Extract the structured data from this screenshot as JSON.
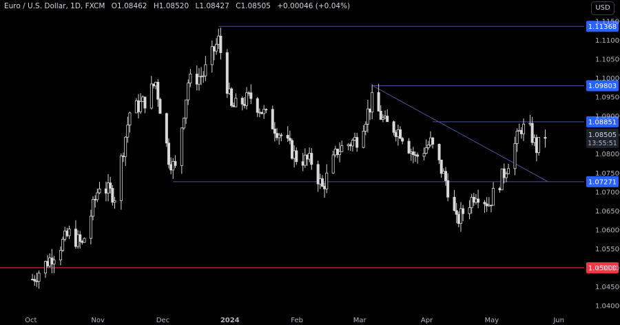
{
  "header": {
    "symbol": "Euro / U.S. Dollar, 1D, FXCM",
    "open": "O1.08462",
    "high": "H1.08520",
    "low": "L1.08427",
    "close": "C1.08505",
    "change": "+0.00046 (+0.04%)"
  },
  "currency_button": "USD",
  "colors": {
    "background": "#000000",
    "candle": "#d9d9d9",
    "levels": "#4a5597",
    "support": "#f23645",
    "label_blue": "#2962ff"
  },
  "chart_data": {
    "type": "candlestick",
    "title": "",
    "x_axis": {
      "tick_labels": [
        "Oct",
        "Nov",
        "Dec",
        "2024",
        "Feb",
        "Mar",
        "Apr",
        "May",
        "Jun"
      ]
    },
    "y_axis": {
      "range": [
        1.038,
        1.117
      ],
      "tick_labels": [
        "1.04000",
        "1.04500",
        "1.05000",
        "1.05500",
        "1.06000",
        "1.06500",
        "1.07000",
        "1.07500",
        "1.08000",
        "1.08500",
        "1.09000",
        "1.09500",
        "1.10000",
        "1.10500",
        "1.11000",
        "1.11500"
      ]
    },
    "horizontal_levels": [
      {
        "value": 1.11368,
        "label": "1.11368",
        "style": "resistance"
      },
      {
        "value": 1.09803,
        "label": "1.09803",
        "style": "resistance"
      },
      {
        "value": 1.08851,
        "label": "1.08851",
        "style": "resistance"
      },
      {
        "value": 1.07271,
        "label": "1.07271",
        "style": "support"
      },
      {
        "value": 1.05,
        "label": "1.05000",
        "style": "key-support"
      }
    ],
    "trendline": {
      "from": {
        "date": "2024-03-08",
        "value": 1.0981
      },
      "to": {
        "date": "2024-05-28",
        "value": 1.0728
      }
    },
    "last_price": {
      "value": 1.08505,
      "label": "1.08505",
      "countdown": "13:55:51"
    },
    "close_path": [
      [
        "2023-10-03",
        1.047
      ],
      [
        "2023-10-12",
        1.053
      ],
      [
        "2023-10-20",
        1.059
      ],
      [
        "2023-10-26",
        1.056
      ],
      [
        "2023-11-03",
        1.072
      ],
      [
        "2023-11-10",
        1.069
      ],
      [
        "2023-11-17",
        1.091
      ],
      [
        "2023-11-24",
        1.094
      ],
      [
        "2023-11-29",
        1.099
      ],
      [
        "2023-12-05",
        1.079
      ],
      [
        "2023-12-08",
        1.076
      ],
      [
        "2023-12-14",
        1.099
      ],
      [
        "2023-12-21",
        1.101
      ],
      [
        "2023-12-28",
        1.11
      ],
      [
        "2024-01-03",
        1.092
      ],
      [
        "2024-01-12",
        1.095
      ],
      [
        "2024-01-19",
        1.09
      ],
      [
        "2024-01-26",
        1.085
      ],
      [
        "2024-02-02",
        1.079
      ],
      [
        "2024-02-09",
        1.078
      ],
      [
        "2024-02-14",
        1.071
      ],
      [
        "2024-02-21",
        1.081
      ],
      [
        "2024-03-01",
        1.084
      ],
      [
        "2024-03-08",
        1.094
      ],
      [
        "2024-03-14",
        1.088
      ],
      [
        "2024-03-21",
        1.086
      ],
      [
        "2024-03-28",
        1.079
      ],
      [
        "2024-04-04",
        1.083
      ],
      [
        "2024-04-11",
        1.073
      ],
      [
        "2024-04-16",
        1.062
      ],
      [
        "2024-04-25",
        1.07
      ],
      [
        "2024-05-01",
        1.067
      ],
      [
        "2024-05-08",
        1.075
      ],
      [
        "2024-05-16",
        1.087
      ],
      [
        "2024-05-20",
        1.086
      ],
      [
        "2024-05-23",
        1.0815
      ],
      [
        "2024-05-27",
        1.085
      ]
    ]
  }
}
